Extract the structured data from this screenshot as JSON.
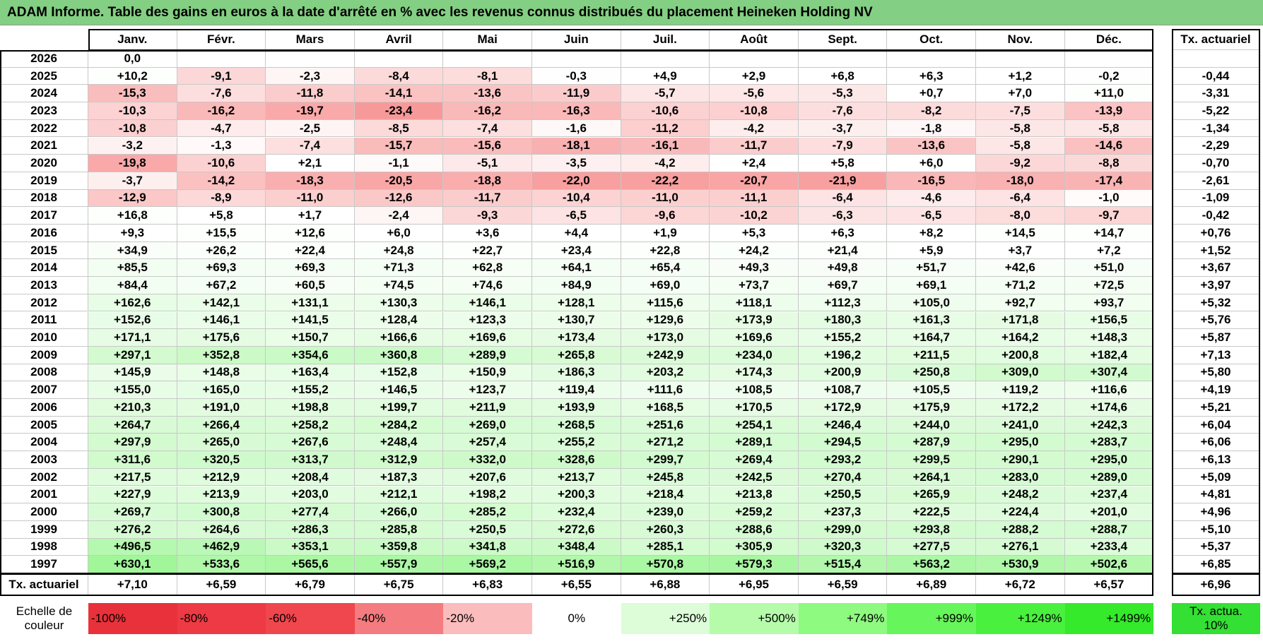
{
  "title": "ADAM Informe. Table des gains en euros à la date d'arrêté en % avec les revenus connus distribués du placement Heineken Holding NV",
  "header": {
    "months": [
      "Janv.",
      "Févr.",
      "Mars",
      "Avril",
      "Mai",
      "Juin",
      "Juil.",
      "Août",
      "Sept.",
      "Oct.",
      "Nov.",
      "Déc."
    ],
    "rate_label": "Tx. actuariel"
  },
  "rows": [
    {
      "year": "2026",
      "values": [
        "0,0"
      ]
    },
    {
      "year": "2025",
      "values": [
        "+10,2",
        "-9,1",
        "-2,3",
        "-8,4",
        "-8,1",
        "-0,3",
        "+4,9",
        "+2,9",
        "+6,8",
        "+6,3",
        "+1,2",
        "-0,2"
      ],
      "rate": "-0,44"
    },
    {
      "year": "2024",
      "values": [
        "-15,3",
        "-7,6",
        "-11,8",
        "-14,1",
        "-13,6",
        "-11,9",
        "-5,7",
        "-5,6",
        "-5,3",
        "+0,7",
        "+7,0",
        "+11,0"
      ],
      "rate": "-3,31"
    },
    {
      "year": "2023",
      "values": [
        "-10,3",
        "-16,2",
        "-19,7",
        "-23,4",
        "-16,2",
        "-16,3",
        "-10,6",
        "-10,8",
        "-7,6",
        "-8,2",
        "-7,5",
        "-13,9"
      ],
      "rate": "-5,22"
    },
    {
      "year": "2022",
      "values": [
        "-10,8",
        "-4,7",
        "-2,5",
        "-8,5",
        "-7,4",
        "-1,6",
        "-11,2",
        "-4,2",
        "-3,7",
        "-1,8",
        "-5,8",
        "-5,8"
      ],
      "rate": "-1,34"
    },
    {
      "year": "2021",
      "values": [
        "-3,2",
        "-1,3",
        "-7,4",
        "-15,7",
        "-15,6",
        "-18,1",
        "-16,1",
        "-11,7",
        "-7,9",
        "-13,6",
        "-5,8",
        "-14,6"
      ],
      "rate": "-2,29"
    },
    {
      "year": "2020",
      "values": [
        "-19,8",
        "-10,6",
        "+2,1",
        "-1,1",
        "-5,1",
        "-3,5",
        "-4,2",
        "+2,4",
        "+5,8",
        "+6,0",
        "-9,2",
        "-8,8"
      ],
      "rate": "-0,70"
    },
    {
      "year": "2019",
      "values": [
        "-3,7",
        "-14,2",
        "-18,3",
        "-20,5",
        "-18,8",
        "-22,0",
        "-22,2",
        "-20,7",
        "-21,9",
        "-16,5",
        "-18,0",
        "-17,4"
      ],
      "rate": "-2,61"
    },
    {
      "year": "2018",
      "values": [
        "-12,9",
        "-8,9",
        "-11,0",
        "-12,6",
        "-11,7",
        "-10,4",
        "-11,0",
        "-11,1",
        "-6,4",
        "-4,6",
        "-6,4",
        "-1,0"
      ],
      "rate": "-1,09"
    },
    {
      "year": "2017",
      "values": [
        "+16,8",
        "+5,8",
        "+1,7",
        "-2,4",
        "-9,3",
        "-6,5",
        "-9,6",
        "-10,2",
        "-6,3",
        "-6,5",
        "-8,0",
        "-9,7"
      ],
      "rate": "-0,42"
    },
    {
      "year": "2016",
      "values": [
        "+9,3",
        "+15,5",
        "+12,6",
        "+6,0",
        "+3,6",
        "+4,4",
        "+1,9",
        "+5,3",
        "+6,3",
        "+8,2",
        "+14,5",
        "+14,7"
      ],
      "rate": "+0,76"
    },
    {
      "year": "2015",
      "values": [
        "+34,9",
        "+26,2",
        "+22,4",
        "+24,8",
        "+22,7",
        "+23,4",
        "+22,8",
        "+24,2",
        "+21,4",
        "+5,9",
        "+3,7",
        "+7,2"
      ],
      "rate": "+1,52"
    },
    {
      "year": "2014",
      "values": [
        "+85,5",
        "+69,3",
        "+69,3",
        "+71,3",
        "+62,8",
        "+64,1",
        "+65,4",
        "+49,3",
        "+49,8",
        "+51,7",
        "+42,6",
        "+51,0"
      ],
      "rate": "+3,67"
    },
    {
      "year": "2013",
      "values": [
        "+84,4",
        "+67,2",
        "+60,5",
        "+74,5",
        "+74,6",
        "+84,9",
        "+69,0",
        "+73,7",
        "+69,7",
        "+69,1",
        "+71,2",
        "+72,5"
      ],
      "rate": "+3,97"
    },
    {
      "year": "2012",
      "values": [
        "+162,6",
        "+142,1",
        "+131,1",
        "+130,3",
        "+146,1",
        "+128,1",
        "+115,6",
        "+118,1",
        "+112,3",
        "+105,0",
        "+92,7",
        "+93,7"
      ],
      "rate": "+5,32"
    },
    {
      "year": "2011",
      "values": [
        "+152,6",
        "+146,1",
        "+141,5",
        "+128,4",
        "+123,3",
        "+130,7",
        "+129,6",
        "+173,9",
        "+180,3",
        "+161,3",
        "+171,8",
        "+156,5"
      ],
      "rate": "+5,76"
    },
    {
      "year": "2010",
      "values": [
        "+171,1",
        "+175,6",
        "+150,7",
        "+166,6",
        "+169,6",
        "+173,4",
        "+173,0",
        "+169,6",
        "+155,2",
        "+164,7",
        "+164,2",
        "+148,3"
      ],
      "rate": "+5,87"
    },
    {
      "year": "2009",
      "values": [
        "+297,1",
        "+352,8",
        "+354,6",
        "+360,8",
        "+289,9",
        "+265,8",
        "+242,9",
        "+234,0",
        "+196,2",
        "+211,5",
        "+200,8",
        "+182,4"
      ],
      "rate": "+7,13"
    },
    {
      "year": "2008",
      "values": [
        "+145,9",
        "+148,8",
        "+163,4",
        "+152,8",
        "+150,9",
        "+186,3",
        "+203,2",
        "+174,3",
        "+200,9",
        "+250,8",
        "+309,0",
        "+307,4"
      ],
      "rate": "+5,80"
    },
    {
      "year": "2007",
      "values": [
        "+155,0",
        "+165,0",
        "+155,2",
        "+146,5",
        "+123,7",
        "+119,4",
        "+111,6",
        "+108,5",
        "+108,7",
        "+105,5",
        "+119,2",
        "+116,6"
      ],
      "rate": "+4,19"
    },
    {
      "year": "2006",
      "values": [
        "+210,3",
        "+191,0",
        "+198,8",
        "+199,7",
        "+211,9",
        "+193,9",
        "+168,5",
        "+170,5",
        "+172,9",
        "+175,9",
        "+172,2",
        "+174,6"
      ],
      "rate": "+5,21"
    },
    {
      "year": "2005",
      "values": [
        "+264,7",
        "+266,4",
        "+258,2",
        "+284,2",
        "+269,0",
        "+268,5",
        "+251,6",
        "+254,1",
        "+246,4",
        "+244,0",
        "+241,0",
        "+242,3"
      ],
      "rate": "+6,04"
    },
    {
      "year": "2004",
      "values": [
        "+297,9",
        "+265,0",
        "+267,6",
        "+248,4",
        "+257,4",
        "+255,2",
        "+271,2",
        "+289,1",
        "+294,5",
        "+287,9",
        "+295,0",
        "+283,7"
      ],
      "rate": "+6,06"
    },
    {
      "year": "2003",
      "values": [
        "+311,6",
        "+320,5",
        "+313,7",
        "+312,9",
        "+332,0",
        "+328,6",
        "+299,7",
        "+269,4",
        "+293,2",
        "+299,5",
        "+290,1",
        "+295,0"
      ],
      "rate": "+6,13"
    },
    {
      "year": "2002",
      "values": [
        "+217,5",
        "+212,9",
        "+208,4",
        "+187,3",
        "+207,6",
        "+213,7",
        "+245,8",
        "+242,5",
        "+270,4",
        "+264,1",
        "+283,0",
        "+289,0"
      ],
      "rate": "+5,09"
    },
    {
      "year": "2001",
      "values": [
        "+227,9",
        "+213,9",
        "+203,0",
        "+212,1",
        "+198,2",
        "+200,3",
        "+218,4",
        "+213,8",
        "+250,5",
        "+265,9",
        "+248,2",
        "+237,4"
      ],
      "rate": "+4,81"
    },
    {
      "year": "2000",
      "values": [
        "+269,7",
        "+300,8",
        "+277,4",
        "+266,0",
        "+285,2",
        "+232,4",
        "+239,0",
        "+259,2",
        "+237,3",
        "+222,5",
        "+224,4",
        "+201,0"
      ],
      "rate": "+4,96"
    },
    {
      "year": "1999",
      "values": [
        "+276,2",
        "+264,6",
        "+286,3",
        "+285,8",
        "+250,5",
        "+272,6",
        "+260,3",
        "+288,6",
        "+299,0",
        "+293,8",
        "+288,2",
        "+288,7"
      ],
      "rate": "+5,10"
    },
    {
      "year": "1998",
      "values": [
        "+496,5",
        "+462,9",
        "+353,1",
        "+359,8",
        "+341,8",
        "+348,4",
        "+285,1",
        "+305,9",
        "+320,3",
        "+277,5",
        "+276,1",
        "+233,4"
      ],
      "rate": "+5,37"
    },
    {
      "year": "1997",
      "values": [
        "+630,1",
        "+533,6",
        "+565,6",
        "+557,9",
        "+569,2",
        "+516,9",
        "+570,8",
        "+579,3",
        "+515,4",
        "+563,2",
        "+530,9",
        "+502,6"
      ],
      "rate": "+6,85"
    }
  ],
  "footer": {
    "label": "Tx. actuariel",
    "values": [
      "+7,10",
      "+6,59",
      "+6,79",
      "+6,75",
      "+6,83",
      "+6,55",
      "+6,88",
      "+6,95",
      "+6,59",
      "+6,89",
      "+6,72",
      "+6,57"
    ],
    "rate": "+6,96"
  },
  "legend": {
    "label": "Echelle de couleur",
    "items": [
      {
        "text": "-100%",
        "color": "#e8313a"
      },
      {
        "text": "-80%",
        "color": "#ed3a44"
      },
      {
        "text": "-60%",
        "color": "#f0464e"
      },
      {
        "text": "-40%",
        "color": "#f47b7f"
      },
      {
        "text": "-20%",
        "color": "#fbbcbd"
      },
      {
        "text": "0%",
        "color": "#ffffff"
      },
      {
        "text": "+250%",
        "color": "#dcfdd8"
      },
      {
        "text": "+500%",
        "color": "#b5fbaa"
      },
      {
        "text": "+749%",
        "color": "#8efa80"
      },
      {
        "text": "+999%",
        "color": "#66f55a"
      },
      {
        "text": "+1249%",
        "color": "#4af03e"
      },
      {
        "text": "+1499%",
        "color": "#34ea2a"
      }
    ],
    "rate_item": {
      "text": "Tx. actua. 10%",
      "color": "#33e033"
    }
  }
}
